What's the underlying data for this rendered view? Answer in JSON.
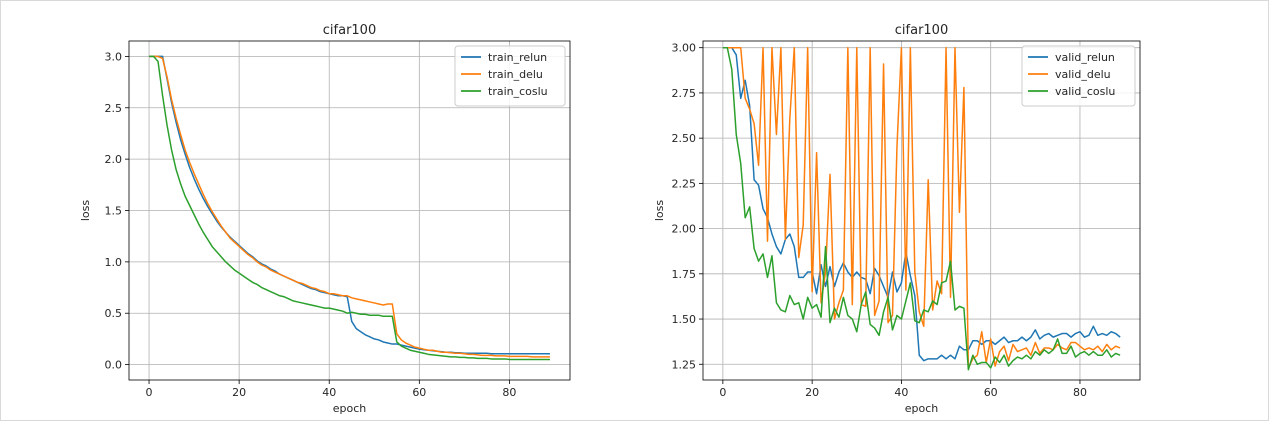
{
  "chart_data": [
    {
      "type": "line",
      "title": "cifar100",
      "xlabel": "epoch",
      "ylabel": "loss",
      "xlim": [
        -4.45,
        93.45
      ],
      "ylim": [
        -0.15,
        3.15
      ],
      "xticks": [
        0,
        20,
        40,
        60,
        80
      ],
      "xtick_labels": [
        "0",
        "20",
        "40",
        "60",
        "80"
      ],
      "yticks": [
        0.0,
        0.5,
        1.0,
        1.5,
        2.0,
        2.5,
        3.0
      ],
      "ytick_labels": [
        "0.0",
        "0.5",
        "1.0",
        "1.5",
        "2.0",
        "2.5",
        "3.0"
      ],
      "grid": true,
      "legend_position": "top-right",
      "x": [
        0,
        1,
        2,
        3,
        4,
        5,
        6,
        7,
        8,
        9,
        10,
        11,
        12,
        13,
        14,
        15,
        16,
        17,
        18,
        19,
        20,
        21,
        22,
        23,
        24,
        25,
        26,
        27,
        28,
        29,
        30,
        31,
        32,
        33,
        34,
        35,
        36,
        37,
        38,
        39,
        40,
        41,
        42,
        43,
        44,
        45,
        46,
        47,
        48,
        49,
        50,
        51,
        52,
        53,
        54,
        55,
        56,
        57,
        58,
        59,
        60,
        61,
        62,
        63,
        64,
        65,
        66,
        67,
        68,
        69,
        70,
        71,
        72,
        73,
        74,
        75,
        76,
        77,
        78,
        79,
        80,
        81,
        82,
        83,
        84,
        85,
        86,
        87,
        88,
        89
      ],
      "series": [
        {
          "name": "train_relun",
          "color": "#1f77b4",
          "values": [
            3.0,
            3.0,
            3.0,
            3.0,
            2.78,
            2.55,
            2.36,
            2.19,
            2.05,
            1.92,
            1.81,
            1.71,
            1.62,
            1.54,
            1.47,
            1.4,
            1.34,
            1.29,
            1.24,
            1.2,
            1.16,
            1.12,
            1.08,
            1.05,
            1.01,
            0.98,
            0.96,
            0.93,
            0.91,
            0.88,
            0.86,
            0.84,
            0.82,
            0.8,
            0.78,
            0.76,
            0.74,
            0.73,
            0.71,
            0.7,
            0.69,
            0.68,
            0.67,
            0.67,
            0.66,
            0.42,
            0.35,
            0.32,
            0.29,
            0.27,
            0.25,
            0.24,
            0.22,
            0.21,
            0.2,
            0.2,
            0.19,
            0.18,
            0.17,
            0.16,
            0.15,
            0.145,
            0.14,
            0.135,
            0.13,
            0.125,
            0.12,
            0.12,
            0.115,
            0.115,
            0.11,
            0.11,
            0.11,
            0.11,
            0.11,
            0.11,
            0.105,
            0.105,
            0.105,
            0.105,
            0.105,
            0.105,
            0.105,
            0.105,
            0.105,
            0.105,
            0.105,
            0.105,
            0.105,
            0.105
          ]
        },
        {
          "name": "train_delu",
          "color": "#ff7f0e",
          "values": [
            3.0,
            3.0,
            3.0,
            2.98,
            2.8,
            2.58,
            2.4,
            2.24,
            2.09,
            1.97,
            1.86,
            1.76,
            1.66,
            1.57,
            1.49,
            1.42,
            1.35,
            1.29,
            1.23,
            1.19,
            1.15,
            1.11,
            1.07,
            1.04,
            1.0,
            0.97,
            0.95,
            0.92,
            0.9,
            0.88,
            0.86,
            0.84,
            0.82,
            0.8,
            0.79,
            0.77,
            0.75,
            0.74,
            0.72,
            0.71,
            0.69,
            0.69,
            0.68,
            0.67,
            0.67,
            0.65,
            0.64,
            0.63,
            0.62,
            0.61,
            0.6,
            0.59,
            0.58,
            0.59,
            0.59,
            0.3,
            0.24,
            0.21,
            0.19,
            0.17,
            0.16,
            0.15,
            0.14,
            0.14,
            0.13,
            0.12,
            0.12,
            0.115,
            0.11,
            0.11,
            0.105,
            0.1,
            0.1,
            0.095,
            0.09,
            0.09,
            0.09,
            0.085,
            0.085,
            0.085,
            0.08,
            0.08,
            0.08,
            0.08,
            0.08,
            0.075,
            0.075,
            0.075,
            0.075,
            0.075
          ]
        },
        {
          "name": "train_coslu",
          "color": "#2ca02c",
          "values": [
            3.0,
            3.0,
            2.95,
            2.62,
            2.33,
            2.09,
            1.9,
            1.76,
            1.64,
            1.55,
            1.46,
            1.37,
            1.29,
            1.22,
            1.15,
            1.1,
            1.05,
            1.0,
            0.96,
            0.92,
            0.89,
            0.86,
            0.83,
            0.8,
            0.78,
            0.75,
            0.73,
            0.71,
            0.69,
            0.67,
            0.66,
            0.64,
            0.62,
            0.61,
            0.6,
            0.59,
            0.58,
            0.57,
            0.56,
            0.55,
            0.55,
            0.54,
            0.53,
            0.52,
            0.5,
            0.51,
            0.5,
            0.49,
            0.49,
            0.48,
            0.48,
            0.48,
            0.47,
            0.47,
            0.47,
            0.22,
            0.18,
            0.16,
            0.14,
            0.13,
            0.12,
            0.11,
            0.1,
            0.095,
            0.09,
            0.085,
            0.08,
            0.075,
            0.075,
            0.07,
            0.07,
            0.065,
            0.065,
            0.06,
            0.06,
            0.06,
            0.055,
            0.055,
            0.055,
            0.055,
            0.05,
            0.05,
            0.05,
            0.05,
            0.05,
            0.05,
            0.05,
            0.05,
            0.05,
            0.05
          ]
        }
      ]
    },
    {
      "type": "line",
      "title": "cifar100",
      "xlabel": "epoch",
      "ylabel": "loss",
      "xlim": [
        -4.45,
        93.45
      ],
      "ylim": [
        1.163,
        3.037
      ],
      "xticks": [
        0,
        20,
        40,
        60,
        80
      ],
      "xtick_labels": [
        "0",
        "20",
        "40",
        "60",
        "80"
      ],
      "yticks": [
        1.25,
        1.5,
        1.75,
        2.0,
        2.25,
        2.5,
        2.75,
        3.0
      ],
      "ytick_labels": [
        "1.25",
        "1.50",
        "1.75",
        "2.00",
        "2.25",
        "2.50",
        "2.75",
        "3.00"
      ],
      "grid": true,
      "legend_position": "top-right",
      "x": [
        0,
        1,
        2,
        3,
        4,
        5,
        6,
        7,
        8,
        9,
        10,
        11,
        12,
        13,
        14,
        15,
        16,
        17,
        18,
        19,
        20,
        21,
        22,
        23,
        24,
        25,
        26,
        27,
        28,
        29,
        30,
        31,
        32,
        33,
        34,
        35,
        36,
        37,
        38,
        39,
        40,
        41,
        42,
        43,
        44,
        45,
        46,
        47,
        48,
        49,
        50,
        51,
        52,
        53,
        54,
        55,
        56,
        57,
        58,
        59,
        60,
        61,
        62,
        63,
        64,
        65,
        66,
        67,
        68,
        69,
        70,
        71,
        72,
        73,
        74,
        75,
        76,
        77,
        78,
        79,
        80,
        81,
        82,
        83,
        84,
        85,
        86,
        87,
        88,
        89
      ],
      "series": [
        {
          "name": "valid_relun",
          "color": "#1f77b4",
          "values": [
            3.0,
            3.0,
            3.0,
            2.96,
            2.72,
            2.82,
            2.68,
            2.27,
            2.24,
            2.11,
            2.06,
            1.97,
            1.9,
            1.86,
            1.94,
            1.97,
            1.9,
            1.73,
            1.73,
            1.76,
            1.76,
            1.64,
            1.8,
            1.68,
            1.79,
            1.68,
            1.76,
            1.81,
            1.76,
            1.73,
            1.76,
            1.73,
            1.72,
            1.64,
            1.78,
            1.74,
            1.68,
            1.62,
            1.76,
            1.65,
            1.7,
            1.87,
            1.74,
            1.63,
            1.3,
            1.27,
            1.28,
            1.28,
            1.28,
            1.3,
            1.28,
            1.3,
            1.28,
            1.35,
            1.33,
            1.33,
            1.38,
            1.38,
            1.36,
            1.38,
            1.38,
            1.36,
            1.38,
            1.4,
            1.37,
            1.38,
            1.38,
            1.4,
            1.38,
            1.4,
            1.44,
            1.39,
            1.41,
            1.42,
            1.4,
            1.41,
            1.42,
            1.42,
            1.4,
            1.42,
            1.43,
            1.4,
            1.41,
            1.46,
            1.41,
            1.42,
            1.41,
            1.43,
            1.42,
            1.4
          ]
        },
        {
          "name": "valid_delu",
          "color": "#ff7f0e",
          "values": [
            3.0,
            3.0,
            3.0,
            3.0,
            3.0,
            2.72,
            2.66,
            2.58,
            2.35,
            3.0,
            1.93,
            3.0,
            2.52,
            3.0,
            1.94,
            2.61,
            3.0,
            1.84,
            2.02,
            3.0,
            1.65,
            2.42,
            1.59,
            1.76,
            2.3,
            1.5,
            1.59,
            1.66,
            3.0,
            1.58,
            3.0,
            1.58,
            1.57,
            3.0,
            1.52,
            1.6,
            2.91,
            1.48,
            1.52,
            2.45,
            3.0,
            1.66,
            3.0,
            1.76,
            1.54,
            1.46,
            2.27,
            1.55,
            1.71,
            1.64,
            3.0,
            1.62,
            3.0,
            2.09,
            2.78,
            1.23,
            1.28,
            1.3,
            1.43,
            1.26,
            1.39,
            1.24,
            1.32,
            1.35,
            1.27,
            1.36,
            1.32,
            1.33,
            1.34,
            1.3,
            1.37,
            1.31,
            1.34,
            1.34,
            1.33,
            1.36,
            1.34,
            1.33,
            1.37,
            1.37,
            1.35,
            1.33,
            1.34,
            1.33,
            1.35,
            1.32,
            1.36,
            1.33,
            1.35,
            1.34
          ]
        },
        {
          "name": "valid_coslu",
          "color": "#2ca02c",
          "values": [
            3.0,
            3.0,
            2.88,
            2.52,
            2.36,
            2.06,
            2.12,
            1.89,
            1.82,
            1.86,
            1.73,
            1.85,
            1.59,
            1.55,
            1.54,
            1.63,
            1.58,
            1.59,
            1.5,
            1.62,
            1.56,
            1.58,
            1.51,
            1.9,
            1.48,
            1.56,
            1.51,
            1.62,
            1.52,
            1.5,
            1.43,
            1.58,
            1.65,
            1.47,
            1.45,
            1.41,
            1.54,
            1.62,
            1.44,
            1.52,
            1.5,
            1.6,
            1.7,
            1.49,
            1.48,
            1.55,
            1.54,
            1.6,
            1.58,
            1.7,
            1.71,
            1.82,
            1.55,
            1.57,
            1.56,
            1.22,
            1.3,
            1.25,
            1.26,
            1.26,
            1.23,
            1.29,
            1.26,
            1.3,
            1.24,
            1.27,
            1.29,
            1.28,
            1.3,
            1.28,
            1.32,
            1.3,
            1.33,
            1.31,
            1.33,
            1.39,
            1.31,
            1.31,
            1.35,
            1.29,
            1.31,
            1.32,
            1.3,
            1.32,
            1.3,
            1.3,
            1.33,
            1.29,
            1.31,
            1.3
          ]
        }
      ]
    }
  ]
}
